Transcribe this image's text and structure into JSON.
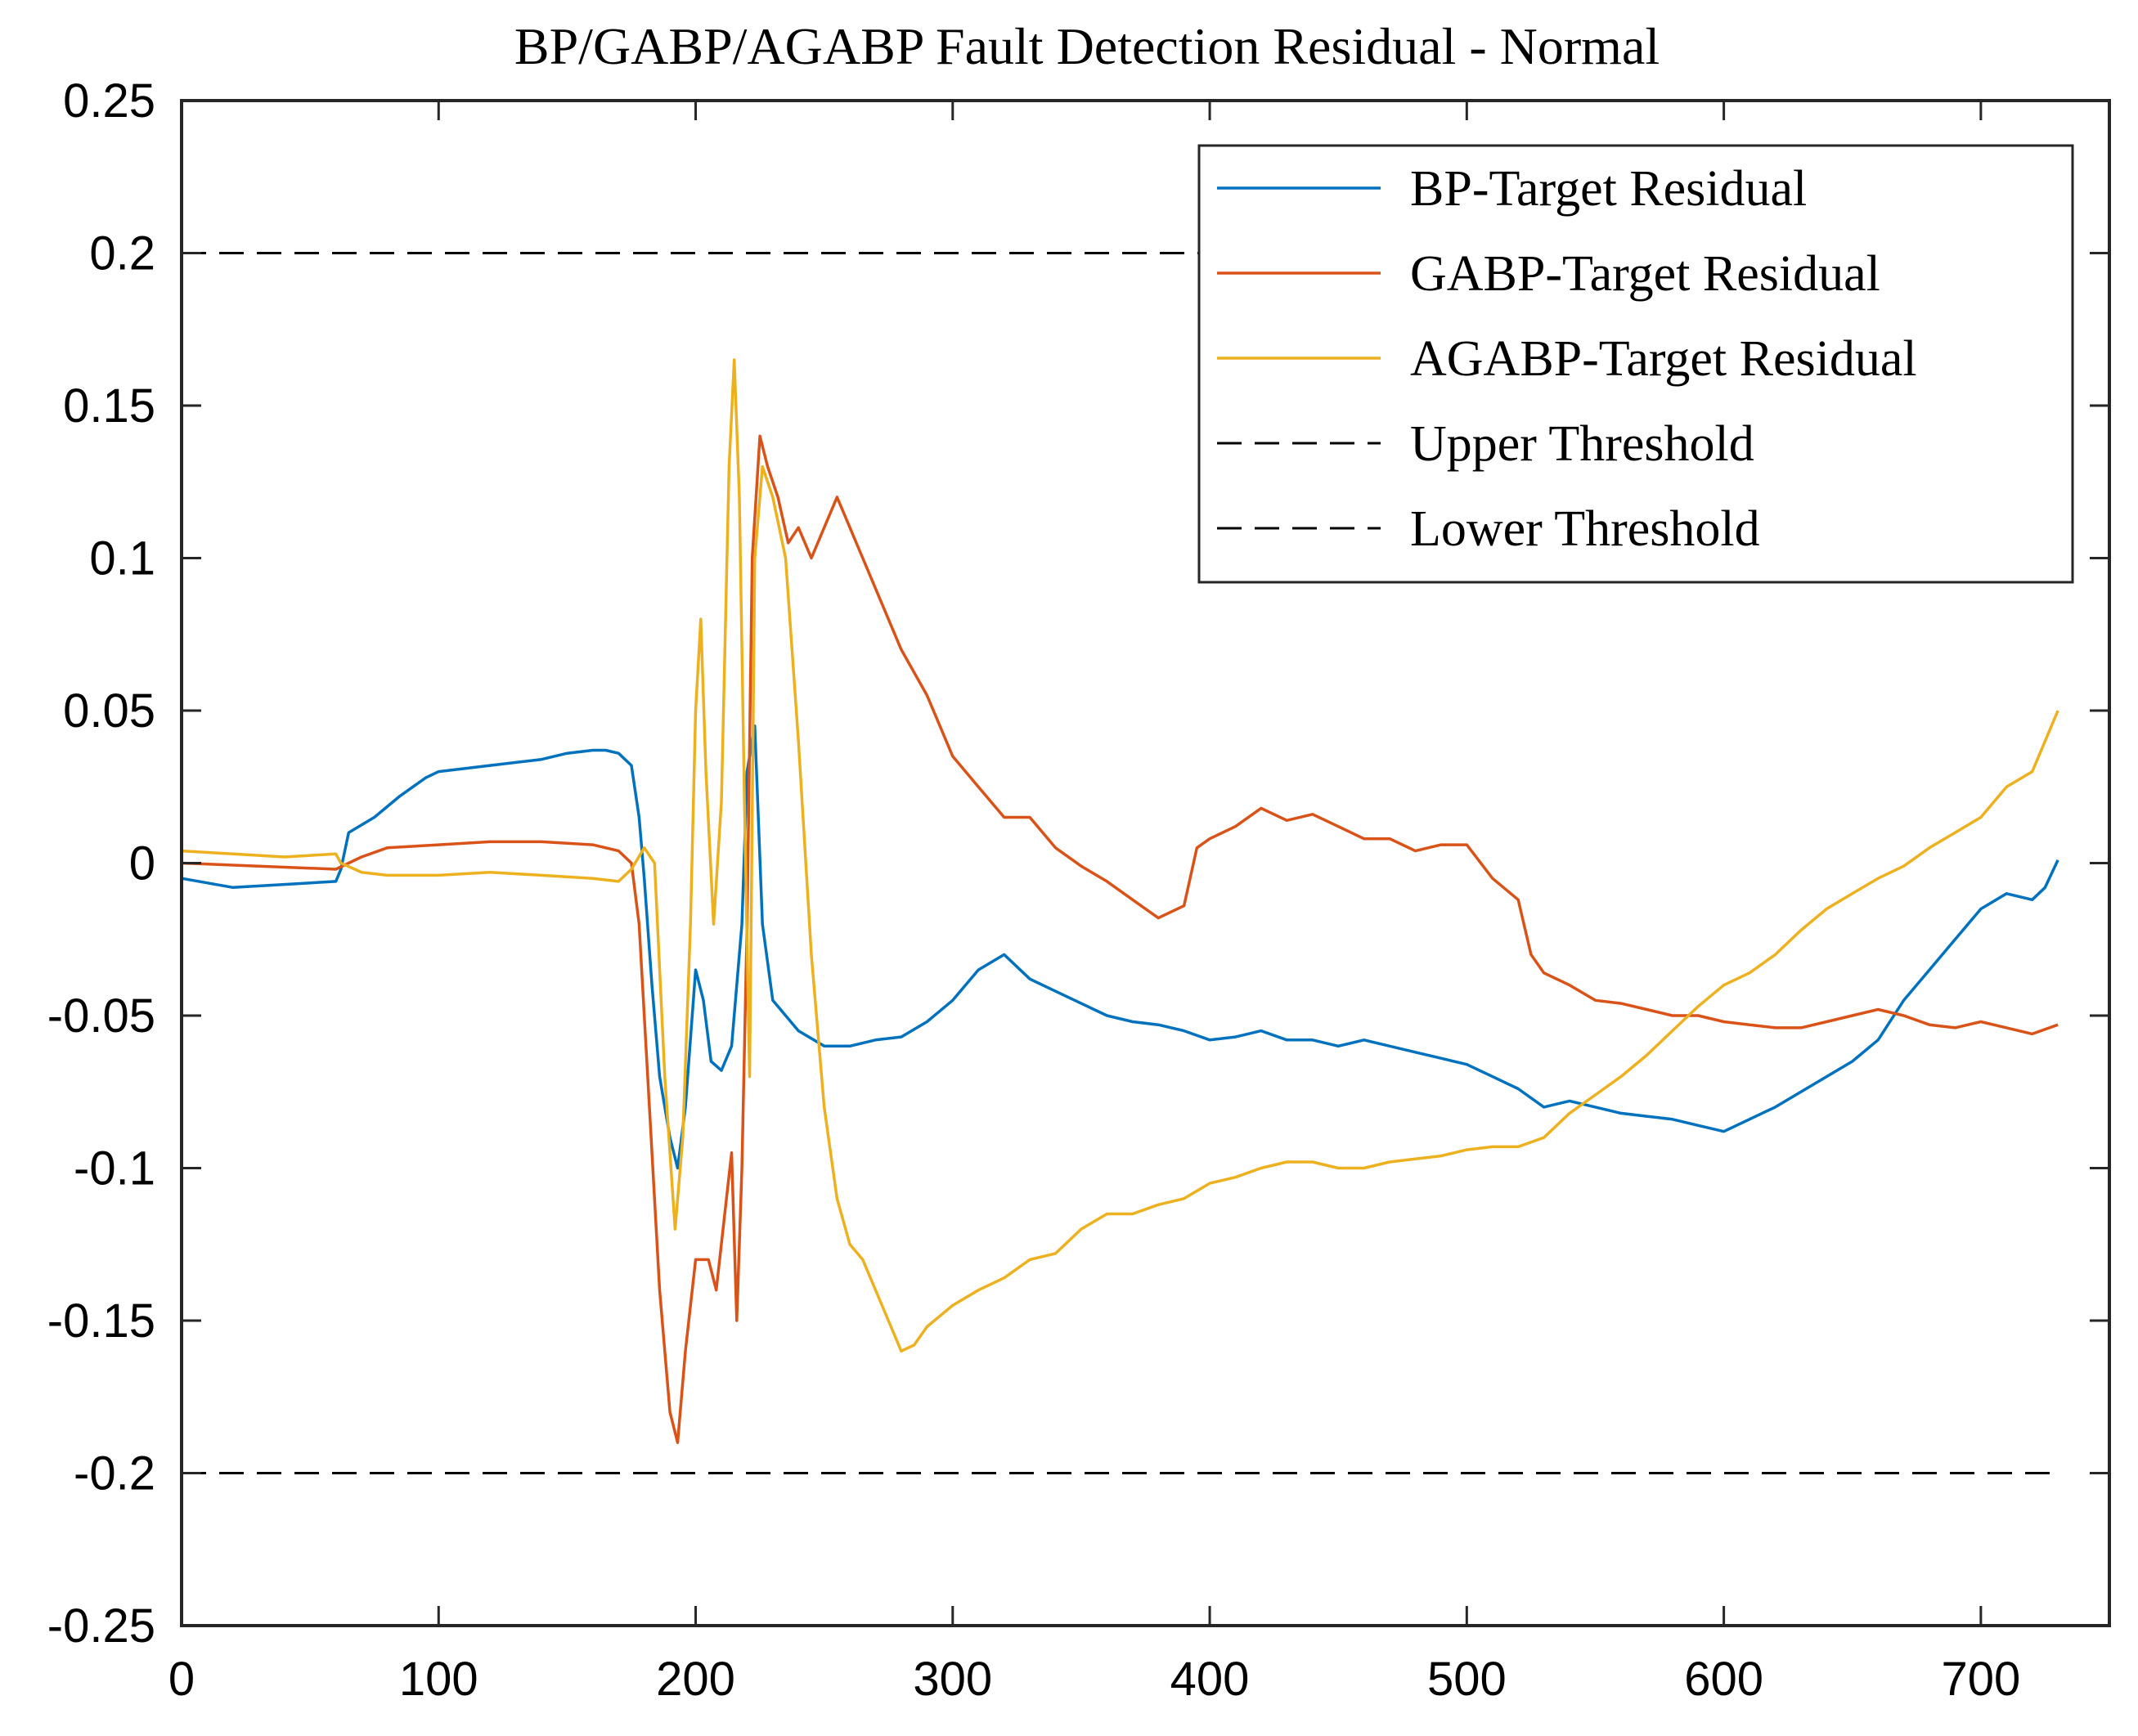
{
  "chart_data": {
    "type": "line",
    "title": "BP/GABP/AGABP Fault Detection Residual - Normal",
    "xlabel": "",
    "ylabel": "",
    "xlim": [
      0,
      750
    ],
    "ylim": [
      -0.25,
      0.25
    ],
    "xticks": [
      0,
      100,
      200,
      300,
      400,
      500,
      600,
      700
    ],
    "xtick_labels": [
      "0",
      "100",
      "200",
      "300",
      "400",
      "500",
      "600",
      "700"
    ],
    "yticks": [
      0.25,
      0.2,
      0.15,
      0.1,
      0.05,
      0,
      -0.05,
      -0.1,
      -0.15,
      -0.2,
      -0.25
    ],
    "ytick_labels": [
      "0.25",
      "0.2",
      "0.15",
      "0.1",
      "0.05",
      "0",
      "-0.05",
      "-0.1",
      "-0.15",
      "-0.2",
      "-0.25"
    ],
    "grid": false,
    "legend_position": "top-right",
    "series": [
      {
        "name": "BP-Target Residual",
        "color": "#0072BD",
        "points": [
          [
            0,
            -0.005
          ],
          [
            20,
            -0.008
          ],
          [
            40,
            -0.007
          ],
          [
            60,
            -0.006
          ],
          [
            62,
            -0.002
          ],
          [
            65,
            0.01
          ],
          [
            75,
            0.015
          ],
          [
            85,
            0.022
          ],
          [
            95,
            0.028
          ],
          [
            100,
            0.03
          ],
          [
            110,
            0.031
          ],
          [
            120,
            0.032
          ],
          [
            140,
            0.034
          ],
          [
            150,
            0.036
          ],
          [
            160,
            0.037
          ],
          [
            165,
            0.037
          ],
          [
            170,
            0.036
          ],
          [
            175,
            0.032
          ],
          [
            178,
            0.015
          ],
          [
            180,
            -0.005
          ],
          [
            183,
            -0.04
          ],
          [
            186,
            -0.07
          ],
          [
            190,
            -0.09
          ],
          [
            193,
            -0.1
          ],
          [
            196,
            -0.08
          ],
          [
            200,
            -0.035
          ],
          [
            203,
            -0.045
          ],
          [
            206,
            -0.065
          ],
          [
            210,
            -0.068
          ],
          [
            214,
            -0.06
          ],
          [
            218,
            -0.02
          ],
          [
            220,
            0.03
          ],
          [
            223,
            0.045
          ],
          [
            226,
            -0.02
          ],
          [
            230,
            -0.045
          ],
          [
            240,
            -0.055
          ],
          [
            250,
            -0.06
          ],
          [
            260,
            -0.06
          ],
          [
            270,
            -0.058
          ],
          [
            280,
            -0.057
          ],
          [
            290,
            -0.052
          ],
          [
            300,
            -0.045
          ],
          [
            310,
            -0.035
          ],
          [
            320,
            -0.03
          ],
          [
            330,
            -0.038
          ],
          [
            340,
            -0.042
          ],
          [
            350,
            -0.046
          ],
          [
            360,
            -0.05
          ],
          [
            370,
            -0.052
          ],
          [
            380,
            -0.053
          ],
          [
            390,
            -0.055
          ],
          [
            400,
            -0.058
          ],
          [
            410,
            -0.057
          ],
          [
            420,
            -0.055
          ],
          [
            430,
            -0.058
          ],
          [
            440,
            -0.058
          ],
          [
            450,
            -0.06
          ],
          [
            460,
            -0.058
          ],
          [
            470,
            -0.06
          ],
          [
            480,
            -0.062
          ],
          [
            490,
            -0.064
          ],
          [
            500,
            -0.066
          ],
          [
            510,
            -0.07
          ],
          [
            520,
            -0.074
          ],
          [
            530,
            -0.08
          ],
          [
            540,
            -0.078
          ],
          [
            550,
            -0.08
          ],
          [
            560,
            -0.082
          ],
          [
            570,
            -0.083
          ],
          [
            580,
            -0.084
          ],
          [
            590,
            -0.086
          ],
          [
            600,
            -0.088
          ],
          [
            610,
            -0.084
          ],
          [
            620,
            -0.08
          ],
          [
            630,
            -0.075
          ],
          [
            640,
            -0.07
          ],
          [
            650,
            -0.065
          ],
          [
            660,
            -0.058
          ],
          [
            670,
            -0.045
          ],
          [
            680,
            -0.035
          ],
          [
            690,
            -0.025
          ],
          [
            700,
            -0.015
          ],
          [
            710,
            -0.01
          ],
          [
            720,
            -0.012
          ],
          [
            725,
            -0.008
          ],
          [
            730,
            0.001
          ]
        ]
      },
      {
        "name": "GABP-Target Residual",
        "color": "#D95319",
        "points": [
          [
            0,
            0.0
          ],
          [
            30,
            -0.001
          ],
          [
            60,
            -0.002
          ],
          [
            70,
            0.002
          ],
          [
            80,
            0.005
          ],
          [
            100,
            0.006
          ],
          [
            120,
            0.007
          ],
          [
            140,
            0.007
          ],
          [
            160,
            0.006
          ],
          [
            170,
            0.004
          ],
          [
            175,
            0.0
          ],
          [
            178,
            -0.02
          ],
          [
            182,
            -0.08
          ],
          [
            186,
            -0.14
          ],
          [
            190,
            -0.18
          ],
          [
            193,
            -0.19
          ],
          [
            196,
            -0.16
          ],
          [
            200,
            -0.13
          ],
          [
            205,
            -0.13
          ],
          [
            208,
            -0.14
          ],
          [
            212,
            -0.11
          ],
          [
            214,
            -0.095
          ],
          [
            216,
            -0.15
          ],
          [
            218,
            -0.1
          ],
          [
            220,
            -0.02
          ],
          [
            222,
            0.1
          ],
          [
            225,
            0.14
          ],
          [
            228,
            0.13
          ],
          [
            232,
            0.12
          ],
          [
            236,
            0.105
          ],
          [
            240,
            0.11
          ],
          [
            245,
            0.1
          ],
          [
            250,
            0.11
          ],
          [
            255,
            0.12
          ],
          [
            260,
            0.11
          ],
          [
            265,
            0.1
          ],
          [
            270,
            0.09
          ],
          [
            280,
            0.07
          ],
          [
            290,
            0.055
          ],
          [
            300,
            0.035
          ],
          [
            310,
            0.025
          ],
          [
            320,
            0.015
          ],
          [
            330,
            0.015
          ],
          [
            340,
            0.005
          ],
          [
            350,
            -0.001
          ],
          [
            360,
            -0.006
          ],
          [
            370,
            -0.012
          ],
          [
            380,
            -0.018
          ],
          [
            390,
            -0.014
          ],
          [
            395,
            0.005
          ],
          [
            400,
            0.008
          ],
          [
            410,
            0.012
          ],
          [
            420,
            0.018
          ],
          [
            430,
            0.014
          ],
          [
            440,
            0.016
          ],
          [
            450,
            0.012
          ],
          [
            460,
            0.008
          ],
          [
            470,
            0.008
          ],
          [
            480,
            0.004
          ],
          [
            490,
            0.006
          ],
          [
            500,
            0.006
          ],
          [
            510,
            -0.005
          ],
          [
            520,
            -0.012
          ],
          [
            525,
            -0.03
          ],
          [
            530,
            -0.036
          ],
          [
            540,
            -0.04
          ],
          [
            550,
            -0.045
          ],
          [
            560,
            -0.046
          ],
          [
            570,
            -0.048
          ],
          [
            580,
            -0.05
          ],
          [
            590,
            -0.05
          ],
          [
            600,
            -0.052
          ],
          [
            610,
            -0.053
          ],
          [
            620,
            -0.054
          ],
          [
            630,
            -0.054
          ],
          [
            640,
            -0.052
          ],
          [
            650,
            -0.05
          ],
          [
            660,
            -0.048
          ],
          [
            670,
            -0.05
          ],
          [
            680,
            -0.053
          ],
          [
            690,
            -0.054
          ],
          [
            700,
            -0.052
          ],
          [
            710,
            -0.054
          ],
          [
            720,
            -0.056
          ],
          [
            730,
            -0.053
          ]
        ]
      },
      {
        "name": "AGABP-Target Residual",
        "color": "#EDB120",
        "points": [
          [
            0,
            0.004
          ],
          [
            20,
            0.003
          ],
          [
            40,
            0.002
          ],
          [
            60,
            0.003
          ],
          [
            62,
            0.0
          ],
          [
            70,
            -0.003
          ],
          [
            80,
            -0.004
          ],
          [
            100,
            -0.004
          ],
          [
            120,
            -0.003
          ],
          [
            140,
            -0.004
          ],
          [
            160,
            -0.005
          ],
          [
            170,
            -0.006
          ],
          [
            175,
            -0.002
          ],
          [
            180,
            0.005
          ],
          [
            184,
            0.0
          ],
          [
            188,
            -0.07
          ],
          [
            192,
            -0.12
          ],
          [
            195,
            -0.09
          ],
          [
            198,
            -0.02
          ],
          [
            200,
            0.05
          ],
          [
            202,
            0.08
          ],
          [
            204,
            0.03
          ],
          [
            207,
            -0.02
          ],
          [
            210,
            0.02
          ],
          [
            213,
            0.13
          ],
          [
            215,
            0.165
          ],
          [
            217,
            0.12
          ],
          [
            219,
            0.02
          ],
          [
            221,
            -0.07
          ],
          [
            223,
            0.1
          ],
          [
            226,
            0.13
          ],
          [
            230,
            0.12
          ],
          [
            235,
            0.1
          ],
          [
            240,
            0.04
          ],
          [
            245,
            -0.03
          ],
          [
            250,
            -0.08
          ],
          [
            255,
            -0.11
          ],
          [
            260,
            -0.125
          ],
          [
            265,
            -0.13
          ],
          [
            270,
            -0.14
          ],
          [
            275,
            -0.15
          ],
          [
            280,
            -0.16
          ],
          [
            285,
            -0.158
          ],
          [
            290,
            -0.152
          ],
          [
            300,
            -0.145
          ],
          [
            310,
            -0.14
          ],
          [
            320,
            -0.136
          ],
          [
            330,
            -0.13
          ],
          [
            340,
            -0.128
          ],
          [
            350,
            -0.12
          ],
          [
            360,
            -0.115
          ],
          [
            370,
            -0.115
          ],
          [
            380,
            -0.112
          ],
          [
            390,
            -0.11
          ],
          [
            400,
            -0.105
          ],
          [
            410,
            -0.103
          ],
          [
            420,
            -0.1
          ],
          [
            430,
            -0.098
          ],
          [
            440,
            -0.098
          ],
          [
            450,
            -0.1
          ],
          [
            460,
            -0.1
          ],
          [
            470,
            -0.098
          ],
          [
            480,
            -0.097
          ],
          [
            490,
            -0.096
          ],
          [
            500,
            -0.094
          ],
          [
            510,
            -0.093
          ],
          [
            520,
            -0.093
          ],
          [
            530,
            -0.09
          ],
          [
            540,
            -0.082
          ],
          [
            550,
            -0.076
          ],
          [
            560,
            -0.07
          ],
          [
            570,
            -0.063
          ],
          [
            580,
            -0.055
          ],
          [
            590,
            -0.047
          ],
          [
            600,
            -0.04
          ],
          [
            610,
            -0.036
          ],
          [
            620,
            -0.03
          ],
          [
            630,
            -0.022
          ],
          [
            640,
            -0.015
          ],
          [
            650,
            -0.01
          ],
          [
            660,
            -0.005
          ],
          [
            670,
            -0.001
          ],
          [
            680,
            0.005
          ],
          [
            690,
            0.01
          ],
          [
            700,
            0.015
          ],
          [
            710,
            0.025
          ],
          [
            720,
            0.03
          ],
          [
            725,
            0.04
          ],
          [
            730,
            0.05
          ]
        ]
      },
      {
        "name": "Upper Threshold",
        "color": "#000000",
        "dashed": true,
        "points": [
          [
            0,
            0.2
          ],
          [
            730,
            0.2
          ]
        ]
      },
      {
        "name": "Lower Threshold",
        "color": "#000000",
        "dashed": true,
        "points": [
          [
            0,
            -0.2
          ],
          [
            730,
            -0.2
          ]
        ]
      }
    ]
  }
}
